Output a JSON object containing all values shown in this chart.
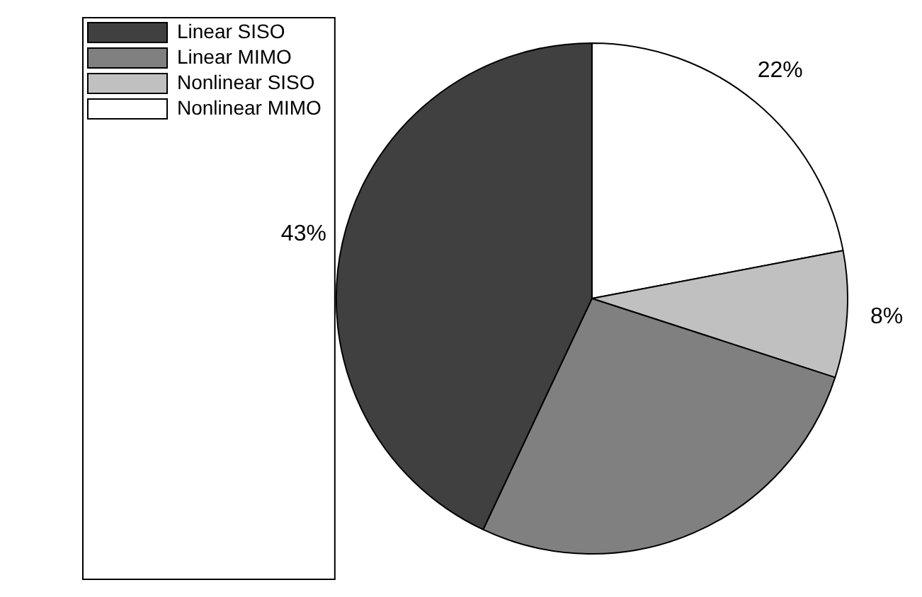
{
  "chart_data": {
    "type": "pie",
    "categories": [
      "Linear SISO",
      "Linear MIMO",
      "Nonlinear SISO",
      "Nonlinear MIMO"
    ],
    "values": [
      43,
      27,
      8,
      22
    ],
    "colors": [
      "#404040",
      "#808080",
      "#c0c0c0",
      "#ffffff"
    ],
    "value_labels": [
      "43%",
      null,
      "8%",
      "22%"
    ],
    "legend": "top left"
  }
}
